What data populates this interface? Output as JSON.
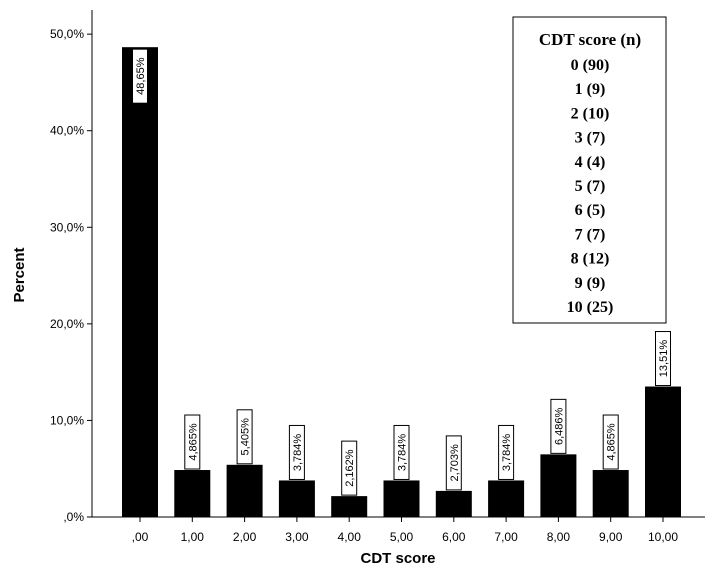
{
  "chart_data": {
    "type": "bar",
    "categories": [
      ",00",
      "1,00",
      "2,00",
      "3,00",
      "4,00",
      "5,00",
      "6,00",
      "7,00",
      "8,00",
      "9,00",
      "10,00"
    ],
    "values": [
      48.65,
      4.865,
      5.405,
      3.784,
      2.162,
      3.784,
      2.703,
      3.784,
      6.486,
      4.865,
      13.51
    ],
    "data_labels": [
      "48,65%",
      "4,865%",
      "5,405%",
      "3,784%",
      "2,162%",
      "3,784%",
      "2,703%",
      "3,784%",
      "6,486%",
      "4,865%",
      "13,51%"
    ],
    "xlabel": "CDT score",
    "ylabel": "Percent",
    "ylim": [
      0,
      52.5
    ],
    "yticks": [
      0,
      10,
      20,
      30,
      40,
      50
    ],
    "ytick_labels": [
      ",0%",
      "10,0%",
      "20,0%",
      "30,0%",
      "40,0%",
      "50,0%"
    ],
    "bar_color": "#000000",
    "grid": false,
    "legend_box": {
      "title": "CDT score (n)",
      "entries": [
        "0 (90)",
        "1 (9)",
        "2 (10)",
        "3 (7)",
        "4 (4)",
        "5 (7)",
        "6 (5)",
        "7 (7)",
        "8 (12)",
        "9 (9)",
        "10 (25)"
      ],
      "placement": "top-right"
    }
  }
}
